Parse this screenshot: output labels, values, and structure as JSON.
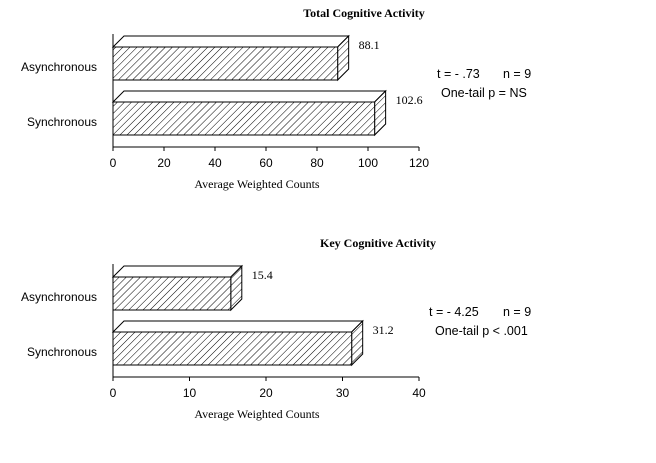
{
  "chart_data": [
    {
      "type": "bar",
      "orientation": "horizontal",
      "title": "Total Cognitive Activity",
      "categories": [
        "Asynchronous",
        "Synchronous"
      ],
      "values": [
        88.1,
        102.6
      ],
      "data_labels": [
        "88.1",
        "102.6"
      ],
      "xlabel": "Average Weighted Counts",
      "ylabel": "",
      "xlim": [
        0,
        120
      ],
      "ticks": [
        "0",
        "20",
        "40",
        "60",
        "80",
        "100",
        "120"
      ],
      "grid": false,
      "bar_fill": "hatched",
      "bar_style": "3d",
      "annotation": {
        "line1_stat": "t = - .73",
        "line1_n": "n = 9",
        "line2": "One-tail p = NS"
      }
    },
    {
      "type": "bar",
      "orientation": "horizontal",
      "title": "Key Cognitive Activity",
      "categories": [
        "Asynchronous",
        "Synchronous"
      ],
      "values": [
        15.4,
        31.2
      ],
      "data_labels": [
        "15.4",
        "31.2"
      ],
      "xlabel": "Average Weighted Counts",
      "ylabel": "",
      "xlim": [
        0,
        40
      ],
      "ticks": [
        "0",
        "10",
        "20",
        "30",
        "40"
      ],
      "grid": false,
      "bar_fill": "hatched",
      "bar_style": "3d",
      "annotation": {
        "line1_stat": "t = - 4.25",
        "line1_n": "n = 9",
        "line2": "One-tail p < .001"
      }
    }
  ],
  "colors": {
    "bar_edge": "#000000",
    "background": "#ffffff"
  }
}
